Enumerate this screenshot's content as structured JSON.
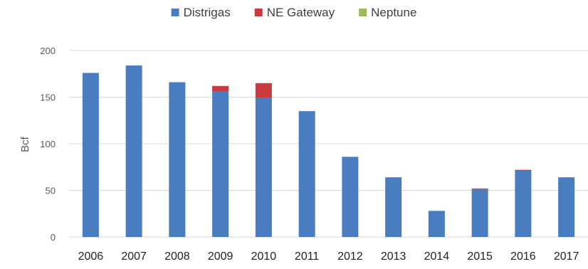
{
  "chart_data": {
    "type": "bar",
    "stacked": true,
    "title": "",
    "xlabel": "",
    "ylabel": "Bcf",
    "ylim": [
      0,
      200
    ],
    "yticks": [
      0,
      50,
      100,
      150,
      200
    ],
    "grid": true,
    "legend": "top",
    "categories": [
      "2006",
      "2007",
      "2008",
      "2009",
      "2010",
      "2011",
      "2012",
      "2013",
      "2014",
      "2015",
      "2016",
      "2017"
    ],
    "series": [
      {
        "name": "Distrigas",
        "color": "#4a7cc0",
        "values": [
          176,
          184,
          166,
          156,
          149,
          135,
          86,
          64,
          28,
          51,
          71,
          64
        ]
      },
      {
        "name": "NE Gateway",
        "color": "#c9393d",
        "values": [
          0,
          0,
          0,
          6,
          16,
          0,
          0,
          0,
          0,
          1,
          1,
          0
        ]
      },
      {
        "name": "Neptune",
        "color": "#9bbb59",
        "values": [
          0,
          0,
          0,
          0,
          0,
          0,
          0,
          0,
          0,
          0,
          0,
          0
        ]
      }
    ]
  }
}
